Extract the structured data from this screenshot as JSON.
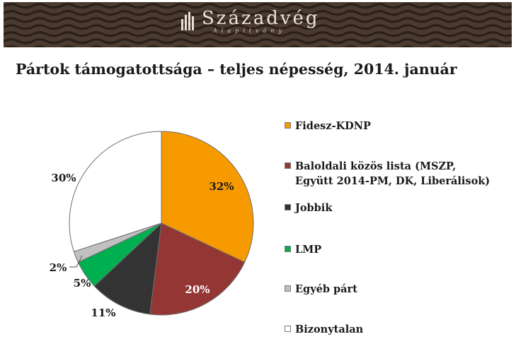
{
  "header": {
    "logo_name": "Századvég",
    "logo_sub": "Alapítvány",
    "background": "#4a3a30"
  },
  "chart_data": {
    "type": "pie",
    "title": "Pártok támogatottsága – teljes népesség, 2014. január",
    "unit": "%",
    "slices": [
      {
        "label": "Fidesz-KDNP",
        "value": 32,
        "display": "32%",
        "color": "#f79a00"
      },
      {
        "label": "Baloldali közös lista (MSZP,\nEgyütt 2014-PM, DK, Liberálisok)",
        "value": 20,
        "display": "20%",
        "color": "#943634"
      },
      {
        "label": "Jobbik",
        "value": 11,
        "display": "11%",
        "color": "#333333"
      },
      {
        "label": "LMP",
        "value": 5,
        "display": "5%",
        "color": "#00b050"
      },
      {
        "label": "Egyéb párt",
        "value": 2,
        "display": "2%",
        "color": "#c0c0c0"
      },
      {
        "label": "Bizonytalan",
        "value": 30,
        "display": "30%",
        "color": "#ffffff"
      }
    ],
    "legend_position": "right"
  }
}
